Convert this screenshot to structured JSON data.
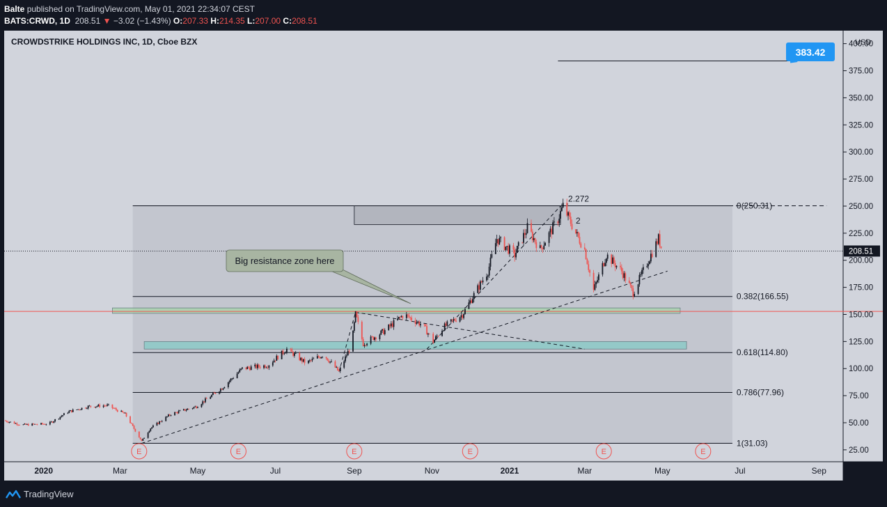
{
  "header": {
    "author": "Balte",
    "published_text": "published on TradingView.com, May 01, 2021 22:34:07 CEST",
    "symbol": "BATS:CRWD, 1D",
    "last_price": "208.51",
    "change": "−3.02 (−1.43%)",
    "open_label": "O:",
    "open": "207.33",
    "high_label": "H:",
    "high": "214.35",
    "low_label": "L:",
    "low": "207.00",
    "close_label": "C:",
    "close": "208.51"
  },
  "footer": {
    "brand": "TradingView"
  },
  "chart_data": {
    "type": "candlestick",
    "title": "CROWDSTRIKE HOLDINGS INC, 1D, Cboe BZX",
    "currency": "USD",
    "ylim": [
      14,
      412
    ],
    "y_ticks": [
      "25.00",
      "50.00",
      "75.00",
      "100.00",
      "125.00",
      "150.00",
      "175.00",
      "200.00",
      "225.00",
      "250.00",
      "275.00",
      "300.00",
      "325.00",
      "350.00",
      "375.00",
      "400.00"
    ],
    "x_range": [
      "2019-12-01",
      "2021-09-20"
    ],
    "x_ticks": [
      {
        "date": "2020-01-01",
        "label": "2020",
        "bold": true
      },
      {
        "date": "2020-03-01",
        "label": "Mar"
      },
      {
        "date": "2020-05-01",
        "label": "May"
      },
      {
        "date": "2020-07-01",
        "label": "Jul"
      },
      {
        "date": "2020-09-01",
        "label": "Sep"
      },
      {
        "date": "2020-11-01",
        "label": "Nov"
      },
      {
        "date": "2021-01-01",
        "label": "2021",
        "bold": true
      },
      {
        "date": "2021-03-01",
        "label": "Mar"
      },
      {
        "date": "2021-05-01",
        "label": "May"
      },
      {
        "date": "2021-07-01",
        "label": "Jul"
      },
      {
        "date": "2021-09-01",
        "label": "Sep"
      }
    ],
    "last_price_label": "208.51",
    "price_path": [
      {
        "date": "2019-12-01",
        "price": 52
      },
      {
        "date": "2019-12-15",
        "price": 48
      },
      {
        "date": "2020-01-05",
        "price": 49
      },
      {
        "date": "2020-01-20",
        "price": 60
      },
      {
        "date": "2020-02-05",
        "price": 65
      },
      {
        "date": "2020-02-20",
        "price": 66
      },
      {
        "date": "2020-03-05",
        "price": 58
      },
      {
        "date": "2020-03-18",
        "price": 33
      },
      {
        "date": "2020-03-25",
        "price": 45
      },
      {
        "date": "2020-04-10",
        "price": 58
      },
      {
        "date": "2020-04-30",
        "price": 65
      },
      {
        "date": "2020-05-20",
        "price": 82
      },
      {
        "date": "2020-06-05",
        "price": 100
      },
      {
        "date": "2020-06-25",
        "price": 103
      },
      {
        "date": "2020-07-10",
        "price": 118
      },
      {
        "date": "2020-07-25",
        "price": 105
      },
      {
        "date": "2020-08-08",
        "price": 113
      },
      {
        "date": "2020-08-20",
        "price": 97
      },
      {
        "date": "2020-08-30",
        "price": 123
      },
      {
        "date": "2020-09-02",
        "price": 150
      },
      {
        "date": "2020-09-08",
        "price": 123
      },
      {
        "date": "2020-09-25",
        "price": 135
      },
      {
        "date": "2020-10-10",
        "price": 150
      },
      {
        "date": "2020-10-25",
        "price": 140
      },
      {
        "date": "2020-11-02",
        "price": 125
      },
      {
        "date": "2020-11-10",
        "price": 138
      },
      {
        "date": "2020-11-25",
        "price": 150
      },
      {
        "date": "2020-12-05",
        "price": 170
      },
      {
        "date": "2020-12-15",
        "price": 190
      },
      {
        "date": "2020-12-22",
        "price": 220
      },
      {
        "date": "2021-01-05",
        "price": 205
      },
      {
        "date": "2021-01-15",
        "price": 230
      },
      {
        "date": "2021-01-25",
        "price": 210
      },
      {
        "date": "2021-02-08",
        "price": 238
      },
      {
        "date": "2021-02-12",
        "price": 250
      },
      {
        "date": "2021-02-22",
        "price": 225
      },
      {
        "date": "2021-03-01",
        "price": 210
      },
      {
        "date": "2021-03-08",
        "price": 172
      },
      {
        "date": "2021-03-18",
        "price": 205
      },
      {
        "date": "2021-03-30",
        "price": 190
      },
      {
        "date": "2021-04-08",
        "price": 170
      },
      {
        "date": "2021-04-20",
        "price": 200
      },
      {
        "date": "2021-04-28",
        "price": 220
      },
      {
        "date": "2021-05-01",
        "price": 208.51
      }
    ],
    "horizontal_lines": [
      {
        "price": 152.8,
        "color": "#ef5350",
        "full_width": true
      },
      {
        "price": 250.31,
        "from": "2020-03-11",
        "to": "2021-06-25",
        "color": "#131722"
      },
      {
        "price": 166.55,
        "from": "2020-03-11",
        "to": "2021-06-25",
        "color": "#131722"
      },
      {
        "price": 114.8,
        "from": "2020-03-11",
        "to": "2021-06-25",
        "color": "#131722"
      },
      {
        "price": 77.96,
        "from": "2020-03-11",
        "to": "2021-06-25",
        "color": "#131722"
      },
      {
        "price": 31.03,
        "from": "2020-03-11",
        "to": "2021-06-25",
        "color": "#131722"
      },
      {
        "price": 384,
        "from": "2021-02-08",
        "to": "2021-08-15",
        "color": "#131722"
      }
    ],
    "fib_levels": [
      {
        "price": 250.31,
        "label": "0(250.31)"
      },
      {
        "price": 166.55,
        "label": "0.382(166.55)"
      },
      {
        "price": 114.8,
        "label": "0.618(114.80)"
      },
      {
        "price": 77.96,
        "label": "0.786(77.96)"
      },
      {
        "price": 31.03,
        "label": "1(31.03)"
      }
    ],
    "extension_labels": [
      {
        "text": "2.272",
        "price": 254
      },
      {
        "text": "2",
        "price": 234
      }
    ],
    "zones": [
      {
        "from": "2020-02-24",
        "to": "2021-05-15",
        "low": 151,
        "high": 156,
        "color": "#a5d6a7"
      },
      {
        "from": "2020-03-20",
        "to": "2021-05-20",
        "low": 118,
        "high": 125,
        "color": "#80cbc4"
      }
    ],
    "annotation": "Big resistance zone here",
    "target_label": "383.42",
    "earnings_markers": [
      {
        "date": "2020-03-16",
        "label": "E"
      },
      {
        "date": "2020-06-02",
        "label": "E"
      },
      {
        "date": "2020-09-01",
        "label": "E"
      },
      {
        "date": "2020-12-01",
        "label": "E"
      },
      {
        "date": "2021-03-16",
        "label": "E"
      },
      {
        "date": "2021-06-02",
        "label": "E"
      }
    ],
    "colors": {
      "background": "#d1d4dc",
      "up": "#131722",
      "down": "#ef5350",
      "accent": "#2196f3",
      "dark": "#131722"
    }
  }
}
